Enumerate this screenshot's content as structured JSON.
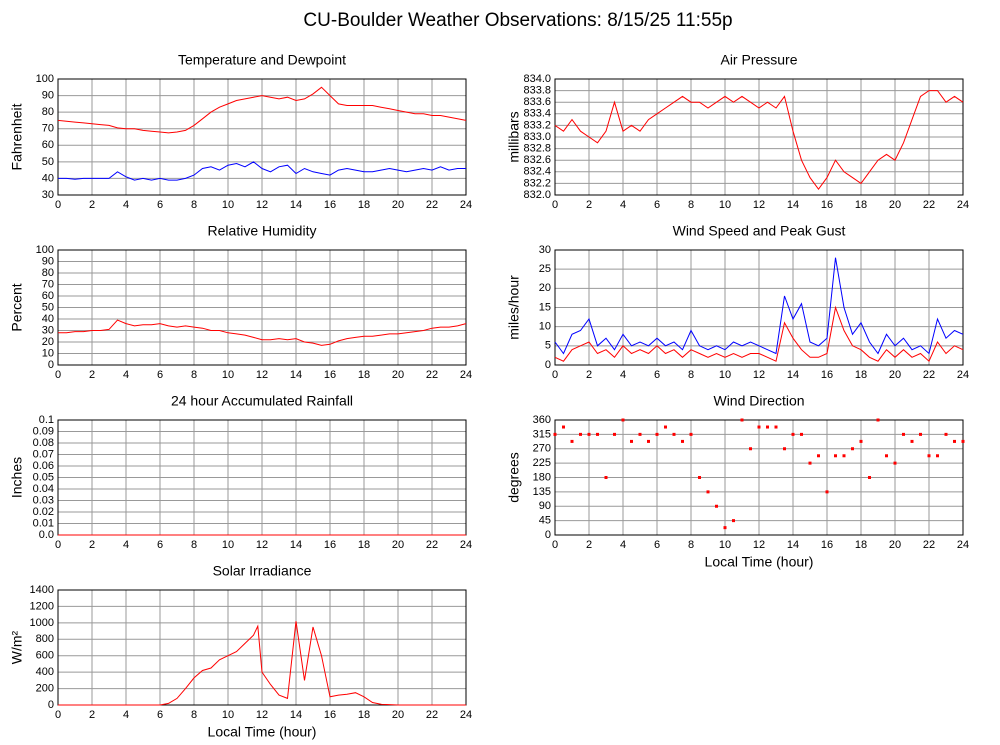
{
  "title": "CU-Boulder Weather Observations: 8/15/25 11:55p",
  "chart_data": [
    {
      "type": "line",
      "title": "Temperature and Dewpoint",
      "ylabel": "Fahrenheit",
      "x": [
        0,
        0.5,
        1,
        1.5,
        2,
        2.5,
        3,
        3.5,
        4,
        4.5,
        5,
        5.5,
        6,
        6.5,
        7,
        7.5,
        8,
        8.5,
        9,
        9.5,
        10,
        10.5,
        11,
        11.5,
        12,
        12.5,
        13,
        13.5,
        14,
        14.5,
        15,
        15.5,
        16,
        16.5,
        17,
        17.5,
        18,
        18.5,
        19,
        19.5,
        20,
        20.5,
        21,
        21.5,
        22,
        22.5,
        23,
        23.5,
        24
      ],
      "series": [
        {
          "color": "#ff0000",
          "values": [
            75,
            74.5,
            74,
            73.5,
            73,
            72.5,
            72,
            70.5,
            70,
            70,
            69,
            68.5,
            68,
            67.5,
            68,
            69,
            72,
            76,
            80,
            83,
            85,
            87,
            88,
            89,
            90,
            89,
            88,
            89,
            87,
            88,
            91,
            95,
            90,
            85,
            84,
            84,
            84,
            84,
            83,
            82,
            81,
            80,
            79,
            79,
            78,
            78,
            77,
            76,
            75
          ]
        },
        {
          "color": "#0000ff",
          "values": [
            40,
            40,
            39.5,
            40,
            40,
            40,
            40,
            44,
            41,
            39,
            40,
            39,
            40,
            39,
            39,
            40,
            42,
            46,
            47,
            45,
            48,
            49,
            47,
            50,
            46,
            44,
            47,
            48,
            43,
            46,
            44,
            43,
            42,
            45,
            46,
            45,
            44,
            44,
            45,
            46,
            45,
            44,
            45,
            46,
            45,
            47,
            45,
            46,
            46
          ]
        }
      ],
      "xlim": [
        0,
        24
      ],
      "ylim": [
        30,
        100
      ],
      "xticks": [
        0,
        2,
        4,
        6,
        8,
        10,
        12,
        14,
        16,
        18,
        20,
        22,
        24
      ],
      "yticks": [
        30,
        40,
        50,
        60,
        70,
        80,
        90,
        100
      ],
      "grid": true
    },
    {
      "type": "line",
      "title": "Air Pressure",
      "ylabel": "millibars",
      "x": [
        0,
        0.5,
        1,
        1.5,
        2,
        2.5,
        3,
        3.5,
        4,
        4.5,
        5,
        5.5,
        6,
        6.5,
        7,
        7.5,
        8,
        8.5,
        9,
        9.5,
        10,
        10.5,
        11,
        11.5,
        12,
        12.5,
        13,
        13.5,
        14,
        14.5,
        15,
        15.5,
        16,
        16.5,
        17,
        17.5,
        18,
        18.5,
        19,
        19.5,
        20,
        20.5,
        21,
        21.5,
        22,
        22.5,
        23,
        23.5,
        24
      ],
      "series": [
        {
          "color": "#ff0000",
          "values": [
            833.2,
            833.1,
            833.3,
            833.1,
            833.0,
            832.9,
            833.1,
            833.6,
            833.1,
            833.2,
            833.1,
            833.3,
            833.4,
            833.5,
            833.6,
            833.7,
            833.6,
            833.6,
            833.5,
            833.6,
            833.7,
            833.6,
            833.7,
            833.6,
            833.5,
            833.6,
            833.5,
            833.7,
            833.1,
            832.6,
            832.3,
            832.1,
            832.3,
            832.6,
            832.4,
            832.3,
            832.2,
            832.4,
            832.6,
            832.7,
            832.6,
            832.9,
            833.3,
            833.7,
            833.8,
            833.8,
            833.6,
            833.7,
            833.6
          ]
        }
      ],
      "xlim": [
        0,
        24
      ],
      "ylim": [
        832,
        834
      ],
      "xticks": [
        0,
        2,
        4,
        6,
        8,
        10,
        12,
        14,
        16,
        18,
        20,
        22,
        24
      ],
      "yticks": [
        {
          "value": 832,
          "label": "832.0"
        },
        832.2,
        832.4,
        832.6,
        832.8,
        {
          "value": 833,
          "label": "833.0"
        },
        833.2,
        833.4,
        833.6,
        833.8,
        {
          "value": 834,
          "label": "834.0"
        }
      ],
      "grid": true
    },
    {
      "type": "line",
      "title": "Relative Humidity",
      "ylabel": "Percent",
      "x": [
        0,
        0.5,
        1,
        1.5,
        2,
        2.5,
        3,
        3.5,
        4,
        4.5,
        5,
        5.5,
        6,
        6.5,
        7,
        7.5,
        8,
        8.5,
        9,
        9.5,
        10,
        10.5,
        11,
        11.5,
        12,
        12.5,
        13,
        13.5,
        14,
        14.5,
        15,
        15.5,
        16,
        16.5,
        17,
        17.5,
        18,
        18.5,
        19,
        19.5,
        20,
        20.5,
        21,
        21.5,
        22,
        22.5,
        23,
        23.5,
        24
      ],
      "series": [
        {
          "color": "#ff0000",
          "values": [
            28,
            28,
            29,
            29,
            30,
            30,
            31,
            39,
            36,
            34,
            35,
            35,
            36,
            34,
            33,
            34,
            33,
            32,
            30,
            30,
            28,
            27,
            26,
            24,
            22,
            22,
            23,
            22,
            23,
            20,
            19,
            17,
            18,
            21,
            23,
            24,
            25,
            25,
            26,
            27,
            27,
            28,
            29,
            30,
            32,
            33,
            33,
            34,
            36
          ]
        }
      ],
      "xlim": [
        0,
        24
      ],
      "ylim": [
        0,
        100
      ],
      "xticks": [
        0,
        2,
        4,
        6,
        8,
        10,
        12,
        14,
        16,
        18,
        20,
        22,
        24
      ],
      "yticks": [
        0,
        10,
        20,
        30,
        40,
        50,
        60,
        70,
        80,
        90,
        100
      ],
      "grid": true
    },
    {
      "type": "line",
      "title": "Wind Speed and Peak Gust",
      "ylabel": "miles/hour",
      "x": [
        0,
        0.5,
        1,
        1.5,
        2,
        2.5,
        3,
        3.5,
        4,
        4.5,
        5,
        5.5,
        6,
        6.5,
        7,
        7.5,
        8,
        8.5,
        9,
        9.5,
        10,
        10.5,
        11,
        11.5,
        12,
        12.5,
        13,
        13.5,
        14,
        14.5,
        15,
        15.5,
        16,
        16.5,
        17,
        17.5,
        18,
        18.5,
        19,
        19.5,
        20,
        20.5,
        21,
        21.5,
        22,
        22.5,
        23,
        23.5,
        24
      ],
      "series": [
        {
          "color": "#0000ff",
          "values": [
            6,
            3,
            8,
            9,
            12,
            5,
            7,
            4,
            8,
            5,
            6,
            5,
            7,
            5,
            6,
            4,
            9,
            5,
            4,
            5,
            4,
            6,
            5,
            6,
            5,
            4,
            3,
            18,
            12,
            16,
            6,
            5,
            7,
            28,
            15,
            8,
            11,
            6,
            3,
            8,
            5,
            7,
            4,
            5,
            3,
            12,
            7,
            9,
            8
          ]
        },
        {
          "color": "#ff0000",
          "values": [
            2,
            1,
            4,
            5,
            6,
            3,
            4,
            2,
            5,
            3,
            4,
            3,
            5,
            3,
            4,
            2,
            4,
            3,
            2,
            3,
            2,
            3,
            2,
            3,
            3,
            2,
            1,
            11,
            7,
            4,
            2,
            2,
            3,
            15,
            9,
            5,
            4,
            2,
            1,
            4,
            2,
            4,
            2,
            3,
            1,
            6,
            3,
            5,
            4
          ]
        }
      ],
      "xlim": [
        0,
        24
      ],
      "ylim": [
        0,
        30
      ],
      "xticks": [
        0,
        2,
        4,
        6,
        8,
        10,
        12,
        14,
        16,
        18,
        20,
        22,
        24
      ],
      "yticks": [
        0,
        5,
        10,
        15,
        20,
        25,
        30
      ],
      "grid": true
    },
    {
      "type": "line",
      "title": "24 hour Accumulated Rainfall",
      "ylabel": "Inches",
      "x": [
        0,
        24
      ],
      "series": [
        {
          "color": "#ff0000",
          "values": [
            0,
            0
          ]
        }
      ],
      "xlim": [
        0,
        24
      ],
      "ylim": [
        0,
        0.1
      ],
      "xticks": [
        0,
        2,
        4,
        6,
        8,
        10,
        12,
        14,
        16,
        18,
        20,
        22,
        24
      ],
      "yticks": [
        {
          "value": 0,
          "label": "0.0"
        },
        0.01,
        0.02,
        0.03,
        0.04,
        0.05,
        0.06,
        0.07,
        0.08,
        0.09,
        0.1
      ],
      "grid": true
    },
    {
      "type": "scatter",
      "title": "Wind Direction",
      "ylabel": "degrees",
      "xlabel": "Local Time (hour)",
      "x": [
        0,
        0.5,
        1,
        1.5,
        2,
        2.5,
        3,
        3.5,
        4,
        4.5,
        5,
        5.5,
        6,
        6.5,
        7,
        7.5,
        8,
        8.5,
        9,
        9.5,
        10,
        10.5,
        11,
        11.5,
        12,
        12.5,
        13,
        13.5,
        14,
        14.5,
        15,
        15.5,
        16,
        16.5,
        17,
        17.5,
        18,
        18.5,
        19,
        19.5,
        20,
        20.5,
        21,
        21.5,
        22,
        22.5,
        23,
        23.5,
        24
      ],
      "series": [
        {
          "color": "#ff0000",
          "values": [
            315,
            338,
            293,
            315,
            315,
            315,
            180,
            315,
            360,
            293,
            315,
            293,
            315,
            338,
            315,
            293,
            315,
            180,
            135,
            90,
            23,
            45,
            360,
            270,
            338,
            338,
            338,
            270,
            315,
            315,
            225,
            248,
            135,
            248,
            248,
            270,
            293,
            180,
            360,
            248,
            225,
            315,
            293,
            315,
            248,
            248,
            315,
            293,
            293
          ]
        }
      ],
      "xlim": [
        0,
        24
      ],
      "ylim": [
        0,
        360
      ],
      "xticks": [
        0,
        2,
        4,
        6,
        8,
        10,
        12,
        14,
        16,
        18,
        20,
        22,
        24
      ],
      "yticks": [
        0,
        45,
        90,
        135,
        180,
        225,
        270,
        315,
        360
      ],
      "grid": true
    },
    {
      "type": "line",
      "title": "Solar Irradiance",
      "ylabel": "W/m²",
      "xlabel": "Local Time (hour)",
      "x": [
        0,
        6,
        6.5,
        7,
        7.5,
        8,
        8.5,
        9,
        9.5,
        10,
        10.5,
        11,
        11.5,
        11.75,
        12,
        12.5,
        13,
        13.5,
        14,
        14.5,
        15,
        15.5,
        16,
        16.5,
        17,
        17.5,
        18,
        18.5,
        19,
        20,
        24
      ],
      "series": [
        {
          "color": "#ff0000",
          "values": [
            0,
            0,
            20,
            80,
            200,
            330,
            420,
            450,
            550,
            600,
            650,
            750,
            850,
            960,
            400,
            250,
            120,
            80,
            1020,
            300,
            950,
            600,
            100,
            120,
            130,
            150,
            100,
            30,
            10,
            0,
            0
          ]
        }
      ],
      "xlim": [
        0,
        24
      ],
      "ylim": [
        0,
        1400
      ],
      "xticks": [
        0,
        2,
        4,
        6,
        8,
        10,
        12,
        14,
        16,
        18,
        20,
        22,
        24
      ],
      "yticks": [
        0,
        200,
        400,
        600,
        800,
        1000,
        1200,
        1400
      ],
      "grid": true
    }
  ]
}
